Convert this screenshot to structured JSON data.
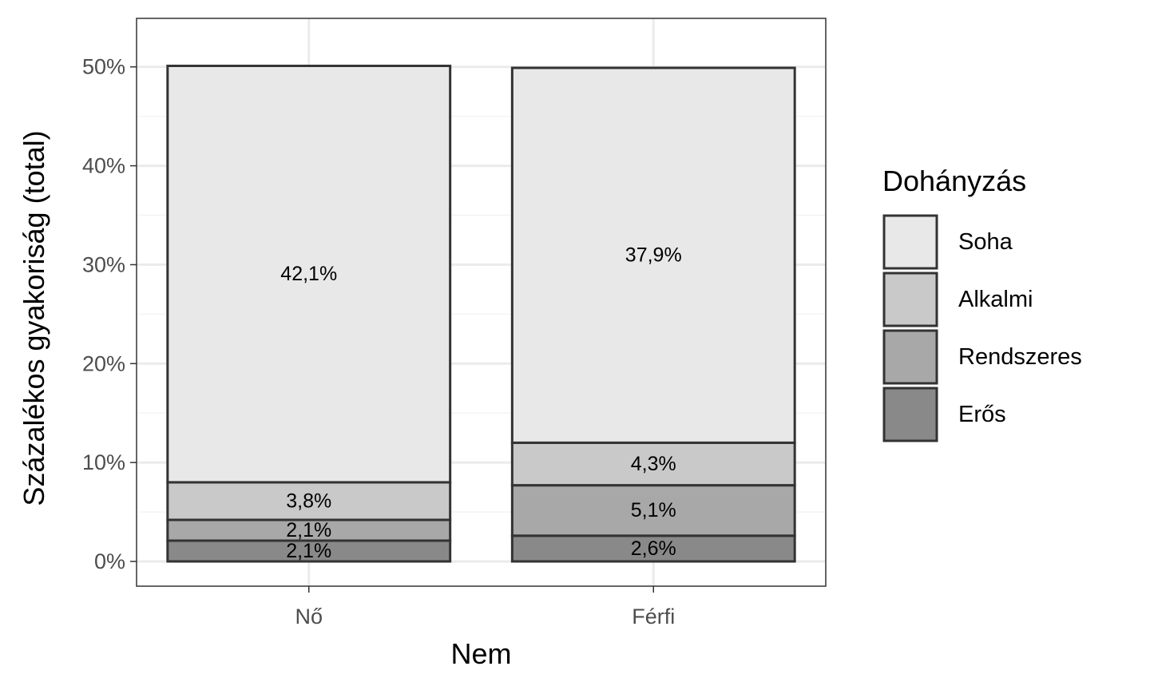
{
  "chart_data": {
    "type": "bar",
    "stacked": true,
    "categories": [
      "Nő",
      "Férfi"
    ],
    "series": [
      {
        "name": "Erős",
        "values": [
          2.1,
          2.6
        ],
        "labels": [
          "2,1%",
          "2,6%"
        ],
        "color": "#898989"
      },
      {
        "name": "Rendszeres",
        "values": [
          2.1,
          5.1
        ],
        "labels": [
          "2,1%",
          "5,1%"
        ],
        "color": "#a8a8a8"
      },
      {
        "name": "Alkalmi",
        "values": [
          3.8,
          4.3
        ],
        "labels": [
          "3,8%",
          "4,3%"
        ],
        "color": "#c9c9c9"
      },
      {
        "name": "Soha",
        "values": [
          42.1,
          37.9
        ],
        "labels": [
          "42,1%",
          "37,9%"
        ],
        "color": "#e8e8e8"
      }
    ],
    "xlabel": "Nem",
    "ylabel": "Százalékos gyakoriság (total)",
    "ylim": [
      0,
      52.4
    ],
    "yticks": [
      0,
      10,
      20,
      30,
      40,
      50
    ],
    "ytick_labels": [
      "0%",
      "10%",
      "20%",
      "30%",
      "40%",
      "50%"
    ],
    "grid": true,
    "bar_border_color": "#333333",
    "legend": {
      "title": "Dohányzás",
      "placement": "right",
      "items": [
        "Soha",
        "Alkalmi",
        "Rendszeres",
        "Erős"
      ]
    }
  }
}
